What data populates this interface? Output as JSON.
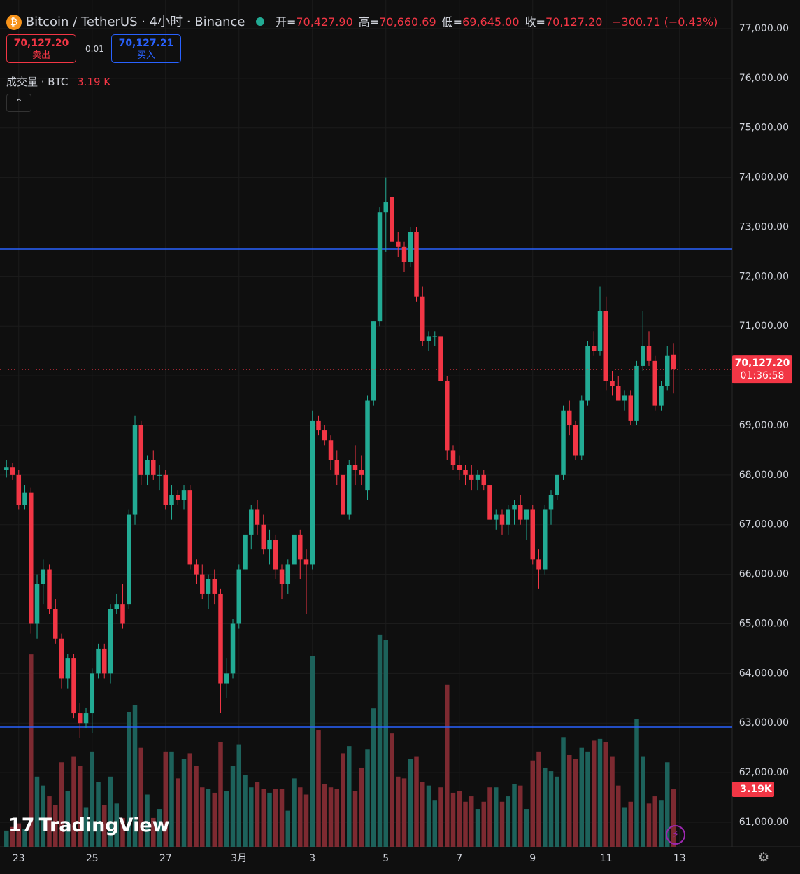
{
  "chart_data": {
    "type": "candlestick",
    "title": "Bitcoin / TetherUS · 4小时 · Binance",
    "ohlc_header": [
      {
        "label": "开=",
        "value": "70,427.90"
      },
      {
        "label": "高=",
        "value": "70,660.69"
      },
      {
        "label": "低=",
        "value": "69,645.00"
      },
      {
        "label": "收=",
        "value": "70,127.20"
      }
    ],
    "change": "−300.71 (−0.43%)",
    "sell_button": {
      "price": "70,127.20",
      "label": "卖出"
    },
    "spread": "0.01",
    "buy_button": {
      "price": "70,127.21",
      "label": "买入"
    },
    "volume_header": {
      "name": "成交量 · BTC",
      "value_label": "3.19 K"
    },
    "last_price_label": "70,127.20",
    "countdown": "01:36:58",
    "last_volume_label": "3.19K",
    "logo": "TradingView",
    "up_color": "#22ab94",
    "down_color": "#f23645",
    "volume_up_color": "#1d625b",
    "volume_down_color": "#7d2a31",
    "hlines": [
      72556,
      62919
    ],
    "hline_color": "#2962ff",
    "open": [
      68100,
      68150,
      68000,
      67400,
      67650,
      65000,
      65800,
      66100,
      65300,
      64700,
      63900,
      64300,
      63200,
      63000,
      63200,
      64000,
      64500,
      64000,
      65300,
      65400,
      65400,
      67200,
      69000,
      68000,
      68300,
      68000,
      68000,
      67400,
      67600,
      67500,
      67700,
      66200,
      66000,
      65600,
      65900,
      65600,
      63800,
      64000,
      65000,
      66100,
      66800,
      67300,
      67000,
      66500,
      66700,
      66100,
      65800,
      66200,
      66800,
      66300,
      66200,
      69100,
      68900,
      68700,
      68300,
      68000,
      67200,
      68200,
      68100,
      67700,
      69500,
      71100,
      73300,
      73600,
      72700,
      72600,
      72300,
      72900,
      71600,
      70700,
      70800,
      70800,
      69900,
      68500,
      68200,
      68100,
      68000,
      67900,
      68000,
      67800,
      67100,
      67200,
      67000,
      67300,
      67400,
      67100,
      67300,
      66300,
      66100,
      67300,
      67600,
      68000,
      69300,
      69000,
      68400,
      69500,
      70600,
      70500,
      71300,
      69900,
      69800,
      69500,
      69600,
      69100,
      70200,
      70600,
      70300,
      69400,
      69800,
      70427.9
    ],
    "high": [
      68300,
      68250,
      68100,
      67800,
      67750,
      66000,
      66300,
      66200,
      65500,
      64800,
      64400,
      64400,
      63400,
      63300,
      64100,
      64600,
      64600,
      65400,
      65600,
      65800,
      67300,
      69200,
      69100,
      68400,
      68500,
      68200,
      68100,
      67800,
      67700,
      67800,
      67800,
      66300,
      66200,
      66000,
      66100,
      65700,
      64300,
      65100,
      66200,
      66900,
      67400,
      67500,
      67200,
      66900,
      66800,
      66200,
      66300,
      66900,
      66900,
      66500,
      69300,
      69200,
      69000,
      68800,
      68500,
      68400,
      68300,
      68600,
      68400,
      69600,
      71100,
      73400,
      74000,
      73700,
      72900,
      72700,
      73000,
      73000,
      71800,
      70900,
      70900,
      70900,
      70000,
      68600,
      68400,
      68200,
      68200,
      68100,
      68100,
      68000,
      67300,
      67300,
      67400,
      67500,
      67600,
      67300,
      67400,
      66500,
      67400,
      67700,
      68000,
      69400,
      69500,
      69100,
      69600,
      70700,
      70900,
      71800,
      71600,
      70100,
      70000,
      69700,
      69700,
      70300,
      71300,
      70900,
      70400,
      69900,
      70600,
      70660.69
    ],
    "low": [
      67950,
      67900,
      67300,
      67300,
      64800,
      64700,
      65400,
      65200,
      64600,
      63700,
      63700,
      63100,
      62700,
      62900,
      62800,
      63900,
      63900,
      63800,
      65200,
      64900,
      65300,
      67000,
      67800,
      67800,
      67900,
      67700,
      67300,
      67100,
      67400,
      67300,
      66100,
      65800,
      65500,
      65300,
      65400,
      63200,
      63500,
      63900,
      64900,
      66000,
      66500,
      66800,
      66400,
      66200,
      65900,
      65500,
      65600,
      65900,
      65900,
      65200,
      66100,
      68800,
      68600,
      68100,
      67800,
      66600,
      67100,
      67800,
      67800,
      67500,
      69400,
      71000,
      72500,
      72500,
      72400,
      72100,
      72200,
      71500,
      70600,
      70500,
      70600,
      69800,
      68300,
      68100,
      67900,
      67800,
      67700,
      67700,
      67700,
      66800,
      66900,
      66800,
      66800,
      67000,
      67000,
      66700,
      66200,
      65700,
      66000,
      67000,
      67500,
      67900,
      68800,
      68300,
      68300,
      69400,
      70400,
      70400,
      69700,
      69600,
      69500,
      69300,
      69000,
      69000,
      70100,
      70200,
      69300,
      69300,
      69700,
      69645
    ],
    "close": [
      68150,
      68000,
      67400,
      67650,
      65000,
      65800,
      66100,
      65300,
      64700,
      63900,
      64300,
      63200,
      63000,
      63200,
      64000,
      64500,
      64000,
      65300,
      65400,
      65000,
      67200,
      69000,
      68000,
      68300,
      68000,
      68000,
      67400,
      67600,
      67500,
      67700,
      66200,
      66000,
      65600,
      65900,
      65600,
      63800,
      64000,
      65000,
      66100,
      66800,
      67300,
      67000,
      66500,
      66700,
      66100,
      65800,
      66200,
      66800,
      66300,
      66200,
      69100,
      68900,
      68700,
      68300,
      68000,
      67200,
      68200,
      68100,
      68000,
      69500,
      71100,
      73300,
      73500,
      72700,
      72600,
      72300,
      72900,
      71600,
      70700,
      70800,
      70800,
      69900,
      68500,
      68200,
      68100,
      68000,
      67900,
      68000,
      67800,
      67100,
      67200,
      67000,
      67300,
      67400,
      67100,
      67300,
      66300,
      66100,
      67300,
      67600,
      68000,
      69300,
      69000,
      68400,
      69500,
      70600,
      70500,
      71300,
      69900,
      69800,
      69500,
      69600,
      69100,
      70200,
      70600,
      70300,
      69400,
      69800,
      70400,
      70127.2
    ],
    "volume": [
      0.9,
      1.1,
      1.3,
      1.0,
      10.7,
      3.9,
      3.4,
      2.8,
      2.3,
      4.7,
      3.1,
      5.0,
      4.5,
      2.2,
      5.3,
      3.6,
      2.3,
      3.9,
      2.4,
      1.6,
      7.5,
      7.9,
      5.5,
      2.9,
      1.6,
      2.1,
      5.3,
      5.3,
      3.8,
      4.9,
      5.2,
      4.5,
      3.3,
      3.2,
      3.0,
      5.8,
      3.1,
      4.5,
      5.7,
      4.0,
      3.3,
      3.6,
      3.2,
      3.0,
      3.2,
      3.2,
      2.0,
      3.8,
      3.3,
      2.9,
      10.6,
      6.5,
      3.5,
      3.3,
      3.2,
      5.2,
      5.6,
      3.1,
      4.4,
      5.4,
      7.7,
      11.8,
      11.5,
      6.3,
      3.9,
      3.8,
      4.9,
      5.0,
      3.6,
      3.4,
      2.6,
      3.3,
      9.0,
      3.0,
      3.1,
      2.5,
      2.8,
      2.1,
      2.5,
      3.3,
      3.3,
      2.5,
      2.8,
      3.5,
      3.4,
      2.1,
      4.8,
      5.3,
      4.4,
      4.2,
      3.9,
      6.1,
      5.1,
      4.9,
      5.5,
      5.3,
      5.9,
      6.0,
      5.8,
      5.0,
      3.4,
      2.2,
      2.5,
      7.1,
      5.0,
      2.4,
      2.8,
      2.6,
      4.7,
      3.19
    ],
    "ylim": [
      60506,
      77578
    ],
    "volume_ylim": [
      0,
      47.1
    ],
    "xlim": [
      -1.06,
      118.6
    ],
    "yticks": [
      {
        "value": 61000,
        "label": "61,000.00"
      },
      {
        "value": 62000,
        "label": "62,000.00"
      },
      {
        "value": 63000,
        "label": "63,000.00"
      },
      {
        "value": 64000,
        "label": "64,000.00"
      },
      {
        "value": 65000,
        "label": "65,000.00"
      },
      {
        "value": 66000,
        "label": "66,000.00"
      },
      {
        "value": 67000,
        "label": "67,000.00"
      },
      {
        "value": 68000,
        "label": "68,000.00"
      },
      {
        "value": 69000,
        "label": "69,000.00"
      },
      {
        "value": 70000,
        "label": "70,000.00"
      },
      {
        "value": 71000,
        "label": "71,000.00"
      },
      {
        "value": 72000,
        "label": "72,000.00"
      },
      {
        "value": 73000,
        "label": "73,000.00"
      },
      {
        "value": 74000,
        "label": "74,000.00"
      },
      {
        "value": 75000,
        "label": "75,000.00"
      },
      {
        "value": 76000,
        "label": "76,000.00"
      },
      {
        "value": 77000,
        "label": "77,000.00"
      }
    ],
    "xticks": [
      {
        "value": 2,
        "label": "23"
      },
      {
        "value": 14,
        "label": "25"
      },
      {
        "value": 26,
        "label": "27"
      },
      {
        "value": 38,
        "label": "3月"
      },
      {
        "value": 50,
        "label": "3"
      },
      {
        "value": 62,
        "label": "5"
      },
      {
        "value": 74,
        "label": "7"
      },
      {
        "value": 86,
        "label": "9"
      },
      {
        "value": 98,
        "label": "11"
      },
      {
        "value": 110,
        "label": "13"
      }
    ],
    "grid": true
  }
}
